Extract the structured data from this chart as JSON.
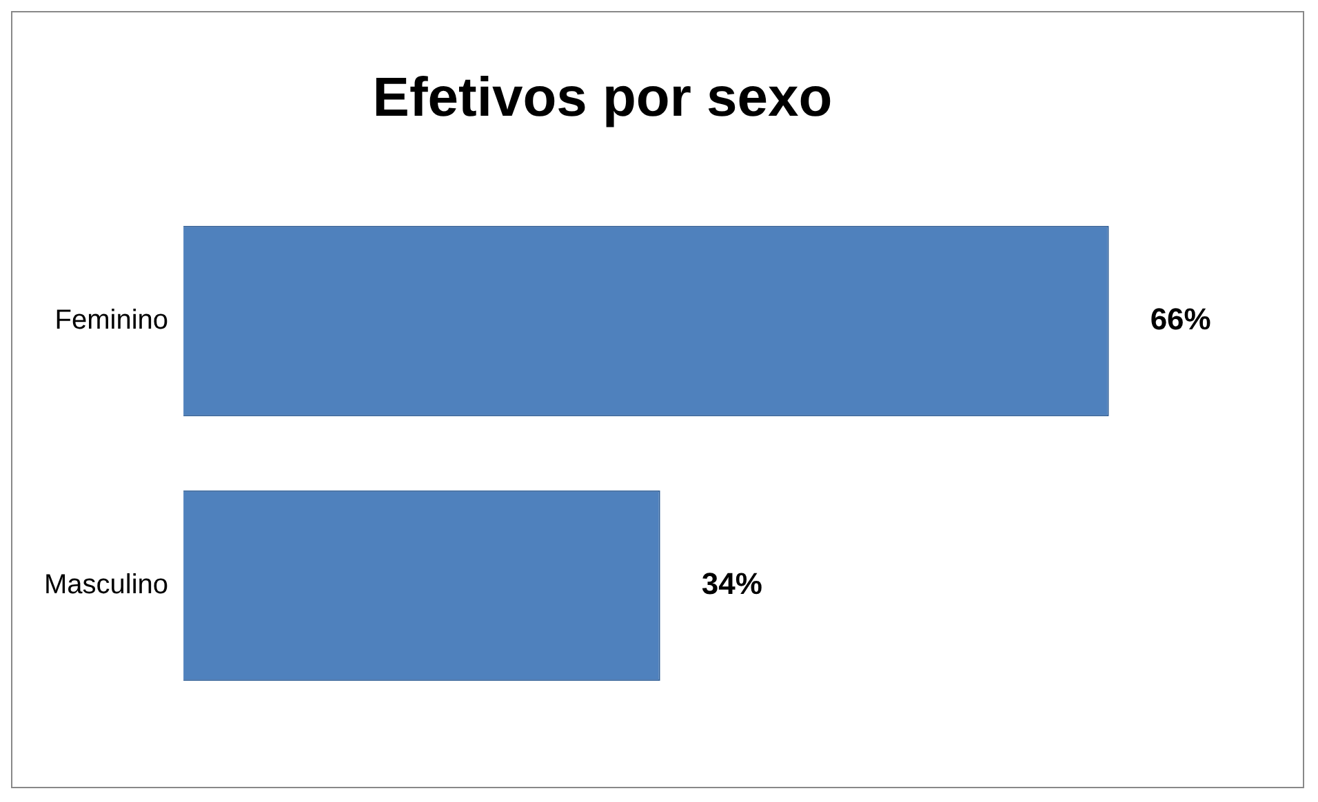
{
  "chart_data": {
    "type": "bar",
    "title": "Efetivos por sexo",
    "orientation": "horizontal",
    "categories": [
      "Feminino",
      "Masculino"
    ],
    "values": [
      66,
      34
    ],
    "value_labels": [
      "66%",
      "34%"
    ],
    "color": "#4f81bd",
    "tick_labels": "y"
  }
}
